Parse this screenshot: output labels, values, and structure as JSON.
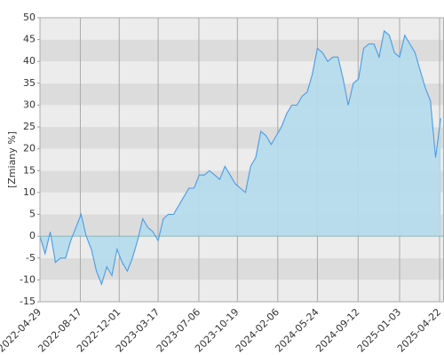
{
  "chart_data": {
    "type": "area",
    "y_label": "[Zmiany %]",
    "ylim": [
      -15,
      50
    ],
    "yticks": [
      -15,
      -10,
      -5,
      0,
      5,
      10,
      15,
      20,
      25,
      30,
      35,
      40,
      45,
      50
    ],
    "xlim": [
      "2022-04-29",
      "2025-05-04"
    ],
    "xticks": [
      "2022-04-29",
      "2022-08-17",
      "2022-12-01",
      "2023-03-17",
      "2023-07-06",
      "2023-10-19",
      "2024-02-06",
      "2024-05-24",
      "2024-09-12",
      "2025-01-03",
      "2025-04-22"
    ],
    "grid": true,
    "band_colors": [
      "#dcdcdc",
      "#ececec"
    ],
    "line_color": "#4b9be6",
    "fill_color": "#b4dcec",
    "x": [
      "2022-04-29",
      "2022-05-13",
      "2022-05-27",
      "2022-06-10",
      "2022-06-24",
      "2022-07-08",
      "2022-07-22",
      "2022-08-05",
      "2022-08-19",
      "2022-09-02",
      "2022-09-16",
      "2022-09-30",
      "2022-10-14",
      "2022-10-28",
      "2022-11-11",
      "2022-11-25",
      "2022-12-09",
      "2022-12-23",
      "2023-01-06",
      "2023-01-20",
      "2023-02-03",
      "2023-02-17",
      "2023-03-03",
      "2023-03-17",
      "2023-03-31",
      "2023-04-14",
      "2023-04-28",
      "2023-05-12",
      "2023-05-26",
      "2023-06-09",
      "2023-06-23",
      "2023-07-07",
      "2023-07-21",
      "2023-08-04",
      "2023-08-18",
      "2023-09-01",
      "2023-09-15",
      "2023-09-29",
      "2023-10-13",
      "2023-10-27",
      "2023-11-10",
      "2023-11-24",
      "2023-12-08",
      "2023-12-22",
      "2024-01-05",
      "2024-01-19",
      "2024-02-02",
      "2024-02-16",
      "2024-03-01",
      "2024-03-15",
      "2024-03-29",
      "2024-04-12",
      "2024-04-26",
      "2024-05-10",
      "2024-05-24",
      "2024-06-07",
      "2024-06-21",
      "2024-07-05",
      "2024-07-19",
      "2024-08-02",
      "2024-08-16",
      "2024-08-30",
      "2024-09-13",
      "2024-09-27",
      "2024-10-11",
      "2024-10-25",
      "2024-11-08",
      "2024-11-22",
      "2024-12-06",
      "2024-12-20",
      "2025-01-03",
      "2025-01-17",
      "2025-01-31",
      "2025-02-14",
      "2025-02-28",
      "2025-03-14",
      "2025-03-28",
      "2025-04-11",
      "2025-04-25"
    ],
    "values": [
      0,
      -4,
      1,
      -6,
      -5,
      -5,
      -1,
      2,
      5,
      0,
      -3,
      -8,
      -11,
      -7,
      -9,
      -3,
      -6,
      -8,
      -5,
      -1,
      4,
      2,
      1,
      -1,
      4,
      5,
      5,
      7,
      9,
      11,
      11,
      14,
      14,
      15,
      14,
      13,
      16,
      14,
      12,
      11,
      10,
      16,
      18,
      24,
      23,
      21,
      23,
      25,
      28,
      30,
      30,
      32,
      33,
      37,
      43,
      42,
      40,
      41,
      41,
      36,
      30,
      35,
      36,
      43,
      44,
      44,
      41,
      47,
      46,
      42,
      41,
      46,
      44,
      42,
      38,
      34,
      31,
      18,
      27
    ]
  }
}
